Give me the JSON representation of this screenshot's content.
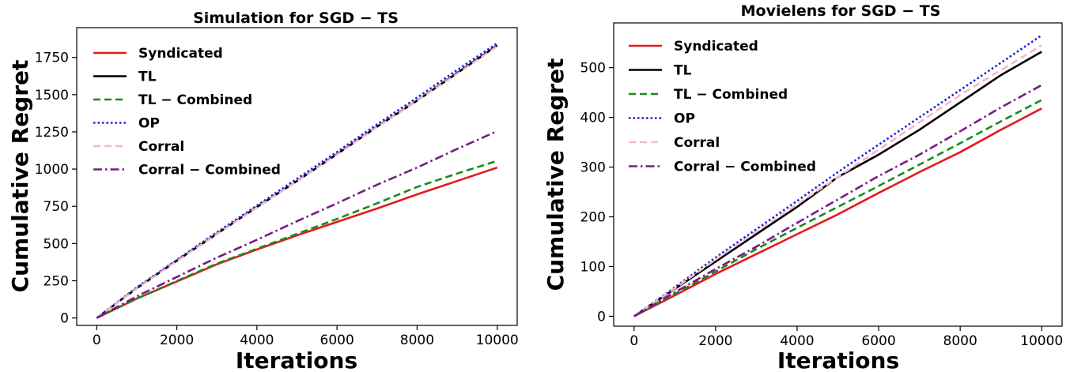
{
  "chart_data": [
    {
      "type": "line",
      "title": "Simulation for SGD − TS",
      "xlabel": "Iterations",
      "ylabel": "Cumulative Regret",
      "xlim": [
        -500,
        10500
      ],
      "ylim": [
        -50,
        1950
      ],
      "xticks": [
        0,
        2000,
        4000,
        6000,
        8000,
        10000
      ],
      "yticks": [
        0,
        250,
        500,
        750,
        1000,
        1250,
        1500,
        1750
      ],
      "xtick_labels": [
        "0",
        "2000",
        "4000",
        "6000",
        "8000",
        "10000"
      ],
      "ytick_labels": [
        "0",
        "250",
        "500",
        "750",
        "1000",
        "1250",
        "1500",
        "1750"
      ],
      "legend_position": "top-left",
      "x": [
        0,
        1000,
        2000,
        3000,
        4000,
        5000,
        6000,
        7000,
        8000,
        9000,
        10000
      ],
      "series": [
        {
          "name": "Syndicated",
          "color": "#e31a1c",
          "style": "solid",
          "values": [
            0,
            130,
            245,
            360,
            460,
            555,
            645,
            735,
            830,
            920,
            1010
          ]
        },
        {
          "name": "TL",
          "color": "#000000",
          "style": "solid",
          "values": [
            0,
            200,
            385,
            565,
            745,
            920,
            1100,
            1285,
            1460,
            1645,
            1830
          ]
        },
        {
          "name": "TL − Combined",
          "color": "#1a8a1a",
          "style": "dashed",
          "values": [
            0,
            130,
            248,
            365,
            465,
            565,
            665,
            770,
            880,
            970,
            1055
          ]
        },
        {
          "name": "OP",
          "color": "#1f1fe0",
          "style": "dotted",
          "values": [
            0,
            205,
            390,
            575,
            755,
            935,
            1115,
            1300,
            1480,
            1665,
            1845
          ]
        },
        {
          "name": "Corral",
          "color": "#f4b9c2",
          "style": "dashed",
          "values": [
            0,
            198,
            382,
            562,
            742,
            918,
            1097,
            1282,
            1458,
            1640,
            1825
          ]
        },
        {
          "name": "Corral − Combined",
          "color": "#7a1a8a",
          "style": "dashdot",
          "values": [
            0,
            145,
            275,
            405,
            525,
            650,
            770,
            895,
            1010,
            1135,
            1255
          ]
        }
      ]
    },
    {
      "type": "line",
      "title": "Movielens for SGD − TS",
      "xlabel": "Iterations",
      "ylabel": "Cumulative Regret",
      "xlim": [
        -500,
        10500
      ],
      "ylim": [
        -20,
        590
      ],
      "xticks": [
        0,
        2000,
        4000,
        6000,
        8000,
        10000
      ],
      "yticks": [
        0,
        100,
        200,
        300,
        400,
        500
      ],
      "xtick_labels": [
        "0",
        "2000",
        "4000",
        "6000",
        "8000",
        "10000"
      ],
      "ytick_labels": [
        "0",
        "100",
        "200",
        "300",
        "400",
        "500"
      ],
      "legend_position": "top-left",
      "x": [
        0,
        1000,
        2000,
        3000,
        4000,
        5000,
        6000,
        7000,
        8000,
        9000,
        10000
      ],
      "series": [
        {
          "name": "Syndicated",
          "color": "#e31a1c",
          "style": "solid",
          "values": [
            0,
            42,
            85,
            125,
            165,
            205,
            248,
            290,
            330,
            375,
            418
          ]
        },
        {
          "name": "TL",
          "color": "#000000",
          "style": "solid",
          "values": [
            0,
            55,
            110,
            165,
            220,
            280,
            325,
            375,
            430,
            485,
            532
          ]
        },
        {
          "name": "TL − Combined",
          "color": "#1a8a1a",
          "style": "dashed",
          "values": [
            0,
            45,
            90,
            135,
            178,
            220,
            262,
            305,
            348,
            392,
            435
          ]
        },
        {
          "name": "OP",
          "color": "#1f1fe0",
          "style": "dotted",
          "values": [
            0,
            58,
            118,
            175,
            232,
            290,
            345,
            400,
            455,
            510,
            565
          ]
        },
        {
          "name": "Corral",
          "color": "#f4b9c2",
          "style": "dashed",
          "values": [
            0,
            56,
            114,
            170,
            225,
            280,
            335,
            390,
            445,
            495,
            545
          ]
        },
        {
          "name": "Corral − Combined",
          "color": "#7a1a8a",
          "style": "dashdot",
          "values": [
            0,
            48,
            95,
            140,
            188,
            235,
            282,
            325,
            372,
            420,
            465
          ]
        }
      ]
    }
  ]
}
